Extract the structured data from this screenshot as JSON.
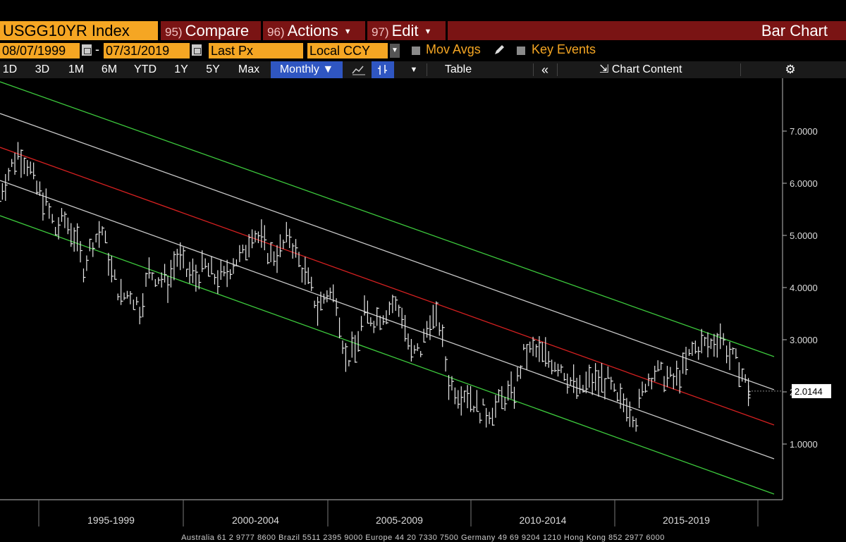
{
  "toolbar": {
    "ticker": "USGG10YR Index",
    "compare": {
      "num": "95)",
      "label": "Compare"
    },
    "actions": {
      "num": "96)",
      "label": "Actions"
    },
    "edit": {
      "num": "97)",
      "label": "Edit"
    },
    "chart_type_title": "Bar Chart"
  },
  "params": {
    "start_date": "08/07/1999",
    "end_date": "07/31/2019",
    "field": "Last Px",
    "currency": "Local CCY",
    "mov_avgs": "Mov Avgs",
    "key_events": "Key Events"
  },
  "ranges": [
    "1D",
    "3D",
    "1M",
    "6M",
    "YTD",
    "1Y",
    "5Y",
    "Max"
  ],
  "frequency": "Monthly",
  "table_label": "Table",
  "chart_content_label": "Chart Content",
  "colors": {
    "accent_orange": "#f5a623",
    "menu_red": "#7a1414",
    "active_blue": "#2f56c2",
    "channel_upper_lower": "#3cc83c",
    "regression_mid": "#d42020",
    "inner_band": "#c8c8c8"
  },
  "icons": [
    "calendar-icon",
    "pencil-icon",
    "line-chart-icon",
    "bar-chart-icon",
    "double-chevron-left-icon",
    "chart-content-icon",
    "gear-icon"
  ],
  "chart_data": {
    "type": "bar",
    "title": "USGG10YR Index",
    "ylim": [
      0,
      8
    ],
    "yticks": [
      "1.0000",
      "2.0000",
      "3.0000",
      "4.0000",
      "5.0000",
      "6.0000",
      "7.0000"
    ],
    "x_labels": [
      "1995-1999",
      "2000-2004",
      "2005-2009",
      "2010-2014",
      "2015-2019"
    ],
    "last_price": "2.0144",
    "series": [
      {
        "x": 1999.58,
        "y": 5.8
      },
      {
        "x": 1999.83,
        "y": 6.2
      },
      {
        "x": 2000.08,
        "y": 6.6
      },
      {
        "x": 2000.33,
        "y": 6.4
      },
      {
        "x": 2000.58,
        "y": 5.9
      },
      {
        "x": 2000.83,
        "y": 5.6
      },
      {
        "x": 2001.08,
        "y": 5.1
      },
      {
        "x": 2001.33,
        "y": 5.3
      },
      {
        "x": 2001.58,
        "y": 5.0
      },
      {
        "x": 2001.83,
        "y": 4.4
      },
      {
        "x": 2002.08,
        "y": 4.9
      },
      {
        "x": 2002.33,
        "y": 5.1
      },
      {
        "x": 2002.58,
        "y": 4.3
      },
      {
        "x": 2002.83,
        "y": 3.8
      },
      {
        "x": 2003.08,
        "y": 3.9
      },
      {
        "x": 2003.33,
        "y": 3.6
      },
      {
        "x": 2003.58,
        "y": 4.3
      },
      {
        "x": 2003.83,
        "y": 4.2
      },
      {
        "x": 2004.08,
        "y": 4.1
      },
      {
        "x": 2004.33,
        "y": 4.6
      },
      {
        "x": 2004.58,
        "y": 4.3
      },
      {
        "x": 2004.83,
        "y": 4.2
      },
      {
        "x": 2005.08,
        "y": 4.4
      },
      {
        "x": 2005.33,
        "y": 4.2
      },
      {
        "x": 2005.58,
        "y": 4.2
      },
      {
        "x": 2005.83,
        "y": 4.5
      },
      {
        "x": 2006.08,
        "y": 4.6
      },
      {
        "x": 2006.33,
        "y": 5.1
      },
      {
        "x": 2006.58,
        "y": 4.9
      },
      {
        "x": 2006.83,
        "y": 4.6
      },
      {
        "x": 2007.08,
        "y": 4.7
      },
      {
        "x": 2007.33,
        "y": 5.0
      },
      {
        "x": 2007.58,
        "y": 4.5
      },
      {
        "x": 2007.83,
        "y": 4.1
      },
      {
        "x": 2008.08,
        "y": 3.6
      },
      {
        "x": 2008.33,
        "y": 3.9
      },
      {
        "x": 2008.58,
        "y": 3.8
      },
      {
        "x": 2008.83,
        "y": 2.6
      },
      {
        "x": 2009.08,
        "y": 2.8
      },
      {
        "x": 2009.33,
        "y": 3.5
      },
      {
        "x": 2009.58,
        "y": 3.4
      },
      {
        "x": 2009.83,
        "y": 3.5
      },
      {
        "x": 2010.08,
        "y": 3.7
      },
      {
        "x": 2010.33,
        "y": 3.5
      },
      {
        "x": 2010.58,
        "y": 2.7
      },
      {
        "x": 2010.83,
        "y": 2.8
      },
      {
        "x": 2011.08,
        "y": 3.4
      },
      {
        "x": 2011.33,
        "y": 3.3
      },
      {
        "x": 2011.58,
        "y": 2.2
      },
      {
        "x": 2011.83,
        "y": 2.0
      },
      {
        "x": 2012.08,
        "y": 2.0
      },
      {
        "x": 2012.33,
        "y": 1.7
      },
      {
        "x": 2012.58,
        "y": 1.6
      },
      {
        "x": 2012.83,
        "y": 1.7
      },
      {
        "x": 2013.08,
        "y": 1.9
      },
      {
        "x": 2013.33,
        "y": 2.0
      },
      {
        "x": 2013.58,
        "y": 2.7
      },
      {
        "x": 2013.83,
        "y": 2.8
      },
      {
        "x": 2014.08,
        "y": 2.7
      },
      {
        "x": 2014.33,
        "y": 2.6
      },
      {
        "x": 2014.58,
        "y": 2.5
      },
      {
        "x": 2014.83,
        "y": 2.2
      },
      {
        "x": 2015.08,
        "y": 2.0
      },
      {
        "x": 2015.33,
        "y": 2.2
      },
      {
        "x": 2015.58,
        "y": 2.2
      },
      {
        "x": 2015.83,
        "y": 2.2
      },
      {
        "x": 2016.08,
        "y": 1.8
      },
      {
        "x": 2016.33,
        "y": 1.8
      },
      {
        "x": 2016.58,
        "y": 1.5
      },
      {
        "x": 2016.83,
        "y": 2.2
      },
      {
        "x": 2017.08,
        "y": 2.4
      },
      {
        "x": 2017.33,
        "y": 2.3
      },
      {
        "x": 2017.58,
        "y": 2.2
      },
      {
        "x": 2017.83,
        "y": 2.4
      },
      {
        "x": 2018.08,
        "y": 2.8
      },
      {
        "x": 2018.33,
        "y": 2.9
      },
      {
        "x": 2018.58,
        "y": 2.9
      },
      {
        "x": 2018.83,
        "y": 3.1
      },
      {
        "x": 2019.08,
        "y": 2.7
      },
      {
        "x": 2019.33,
        "y": 2.5
      },
      {
        "x": 2019.58,
        "y": 2.0
      }
    ]
  },
  "footer": "Australia 61 2 9777 8600 Brazil 5511 2395 9000 Europe 44 20 7330 7500 Germany 49 69 9204 1210 Hong Kong 852 2977 6000"
}
